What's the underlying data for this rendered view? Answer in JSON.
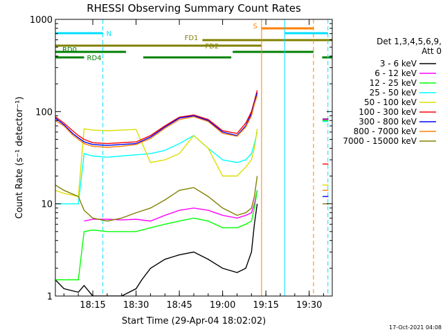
{
  "chart_data": {
    "type": "line",
    "title": "RHESSI Observing Summary Count Rates",
    "xlabel": "Start Time (29-Apr-04 18:02:02)",
    "ylabel": "Count Rate (s⁻¹ detector⁻¹)",
    "yscale": "log",
    "ylim": [
      1,
      1000
    ],
    "xlim": [
      "18:02:02",
      "19:38:00"
    ],
    "x_ticks": [
      "18:15",
      "18:30",
      "18:45",
      "19:00",
      "19:15",
      "19:30"
    ],
    "y_ticks": [
      "1",
      "10",
      "100",
      "1000"
    ],
    "grid": false,
    "legend_position": "right",
    "legend_header": [
      "Det 1,3,4,5,6,9,",
      "Att 0"
    ],
    "series": [
      {
        "name": "3 - 6 keV",
        "color": "#000000",
        "x": [
          "18:02",
          "18:05",
          "18:10",
          "18:12",
          "18:15",
          "18:20",
          "18:25",
          "18:30",
          "18:32",
          "18:35",
          "18:40",
          "18:45",
          "18:50",
          "18:55",
          "19:00",
          "19:05",
          "19:08",
          "19:10",
          "19:11",
          "19:12"
        ],
        "values": [
          1.5,
          1.2,
          1.1,
          1.3,
          1.0,
          1.0,
          1.0,
          1.2,
          1.5,
          2.0,
          2.5,
          2.8,
          3.0,
          2.5,
          2.0,
          1.8,
          2.0,
          3.0,
          6.0,
          10.0
        ]
      },
      {
        "name": "6 - 12 keV",
        "color": "#ff00ff",
        "x": [
          "18:12",
          "18:15",
          "18:20",
          "18:25",
          "18:30",
          "18:35",
          "18:40",
          "18:45",
          "18:50",
          "18:55",
          "19:00",
          "19:05",
          "19:08",
          "19:10",
          "19:11",
          "19:12"
        ],
        "values": [
          6.5,
          6.8,
          6.8,
          6.7,
          6.8,
          6.5,
          7.5,
          8.5,
          9.0,
          8.5,
          7.5,
          7.0,
          7.5,
          8.0,
          10.0,
          14.0
        ]
      },
      {
        "name": "12 - 25 keV",
        "color": "#00ff00",
        "x": [
          "18:02",
          "18:08",
          "18:10",
          "18:12",
          "18:15",
          "18:20",
          "18:25",
          "18:30",
          "18:35",
          "18:40",
          "18:45",
          "18:50",
          "18:55",
          "19:00",
          "19:05",
          "19:08",
          "19:10",
          "19:11",
          "19:12"
        ],
        "values": [
          1.5,
          1.5,
          1.5,
          5.0,
          5.2,
          5.0,
          5.0,
          5.0,
          5.5,
          6.0,
          6.5,
          7.0,
          6.5,
          5.5,
          5.5,
          6.0,
          6.5,
          9.0,
          14.0
        ]
      },
      {
        "name": "25 - 50 keV",
        "color": "#00ffff",
        "x": [
          "18:02",
          "18:05",
          "18:10",
          "18:12",
          "18:15",
          "18:20",
          "18:25",
          "18:30",
          "18:35",
          "18:40",
          "18:45",
          "18:50",
          "18:55",
          "19:00",
          "19:05",
          "19:08",
          "19:10",
          "19:11",
          "19:12"
        ],
        "values": [
          10,
          10,
          10,
          35,
          33,
          32,
          33,
          34,
          35,
          38,
          45,
          55,
          40,
          30,
          28,
          30,
          35,
          45,
          60
        ]
      },
      {
        "name": "50 - 100 keV",
        "color": "#dddd00",
        "x": [
          "18:02",
          "18:05",
          "18:10",
          "18:12",
          "18:15",
          "18:20",
          "18:25",
          "18:30",
          "18:35",
          "18:40",
          "18:45",
          "18:50",
          "18:55",
          "19:00",
          "19:05",
          "19:08",
          "19:10",
          "19:11",
          "19:12"
        ],
        "values": [
          14,
          13,
          12,
          65,
          63,
          62,
          63,
          64,
          28,
          30,
          35,
          55,
          40,
          20,
          20,
          25,
          30,
          40,
          65
        ]
      },
      {
        "name": "100 - 300 keV",
        "color": "#ff0000",
        "x": [
          "18:02",
          "18:05",
          "18:08",
          "18:10",
          "18:12",
          "18:15",
          "18:20",
          "18:25",
          "18:30",
          "18:35",
          "18:40",
          "18:45",
          "18:50",
          "18:55",
          "19:00",
          "19:05",
          "19:08",
          "19:10",
          "19:11",
          "19:12"
        ],
        "values": [
          88,
          75,
          62,
          55,
          50,
          46,
          45,
          46,
          47,
          55,
          70,
          87,
          92,
          82,
          62,
          58,
          75,
          100,
          130,
          170
        ]
      },
      {
        "name": "300 - 800 keV",
        "color": "#0000ff",
        "x": [
          "18:02",
          "18:05",
          "18:08",
          "18:10",
          "18:12",
          "18:15",
          "18:20",
          "18:25",
          "18:30",
          "18:35",
          "18:40",
          "18:45",
          "18:50",
          "18:55",
          "19:00",
          "19:05",
          "19:08",
          "19:10",
          "19:11",
          "19:12"
        ],
        "values": [
          85,
          72,
          58,
          52,
          47,
          44,
          43,
          44,
          45,
          53,
          68,
          85,
          90,
          80,
          60,
          55,
          70,
          95,
          125,
          160
        ]
      },
      {
        "name": "800 - 7000 keV",
        "color": "#ff8000",
        "x": [
          "18:02",
          "18:05",
          "18:08",
          "18:10",
          "18:12",
          "18:15",
          "18:20",
          "18:25",
          "18:30",
          "18:35",
          "18:40",
          "18:45",
          "18:50",
          "18:55",
          "19:00",
          "19:05",
          "19:08",
          "19:10",
          "19:11",
          "19:12"
        ],
        "values": [
          80,
          70,
          56,
          50,
          45,
          42,
          41,
          42,
          44,
          51,
          66,
          82,
          88,
          78,
          58,
          54,
          68,
          90,
          120,
          150
        ]
      },
      {
        "name": "7000 - 15000 keV",
        "color": "#808000",
        "x": [
          "18:02",
          "18:05",
          "18:10",
          "18:12",
          "18:15",
          "18:20",
          "18:25",
          "18:30",
          "18:35",
          "18:40",
          "18:45",
          "18:50",
          "18:55",
          "19:00",
          "19:05",
          "19:08",
          "19:10",
          "19:11",
          "19:12"
        ],
        "values": [
          16,
          14,
          12,
          8.5,
          7.0,
          6.5,
          7.0,
          8.0,
          9.0,
          11,
          14,
          15,
          12,
          9.0,
          7.5,
          8.0,
          9.0,
          12,
          20
        ]
      }
    ],
    "vertical_markers": [
      {
        "time": "18:02:02",
        "color": "#00e0ff",
        "style": "solid"
      },
      {
        "time": "18:18:30",
        "color": "#00e0ff",
        "style": "dashed"
      },
      {
        "time": "19:13:30",
        "color": "#ff8000",
        "style": "solid"
      },
      {
        "time": "19:21:30",
        "color": "#00e0ff",
        "style": "solid"
      },
      {
        "time": "19:31:30",
        "color": "#ff8000",
        "style": "dashed"
      },
      {
        "time": "19:36:30",
        "color": "#00e0ff",
        "style": "dashed"
      }
    ],
    "status_bars": [
      {
        "label": "N",
        "color": "#00e0ff",
        "level": 1,
        "segments": [
          [
            "18:02:02",
            "18:18:30"
          ],
          [
            "19:21:30",
            "19:36:30"
          ]
        ]
      },
      {
        "label": "S",
        "color": "#ff8000",
        "level": 0,
        "segments": [
          [
            "19:13:30",
            "19:31:30"
          ]
        ]
      },
      {
        "label": "FD1",
        "color": "#808000",
        "level": 2,
        "segments": [
          [
            "18:53:00",
            "19:38:00"
          ]
        ]
      },
      {
        "label": "FD2",
        "color": "#808000",
        "level": 3,
        "segments": [
          [
            "18:02:02",
            "19:13:30"
          ]
        ]
      },
      {
        "label": "RD0",
        "color": "#008000",
        "level": 4,
        "segments": [
          [
            "18:02:02",
            "18:26:30"
          ],
          [
            "19:03:30",
            "19:31:30"
          ]
        ]
      },
      {
        "label": "RD4",
        "color": "#008000",
        "level": 5,
        "segments": [
          [
            "18:02:02",
            "18:12:00"
          ],
          [
            "18:32:30",
            "19:03:00"
          ],
          [
            "19:34:30",
            "19:38:00"
          ]
        ]
      }
    ],
    "post_gap_levels": {
      "x": "19:36:40",
      "values": [
        83,
        82,
        80,
        78,
        16,
        27,
        12,
        14,
        10
      ]
    }
  },
  "footer_timestamp": "17-Oct-2021 04:08"
}
